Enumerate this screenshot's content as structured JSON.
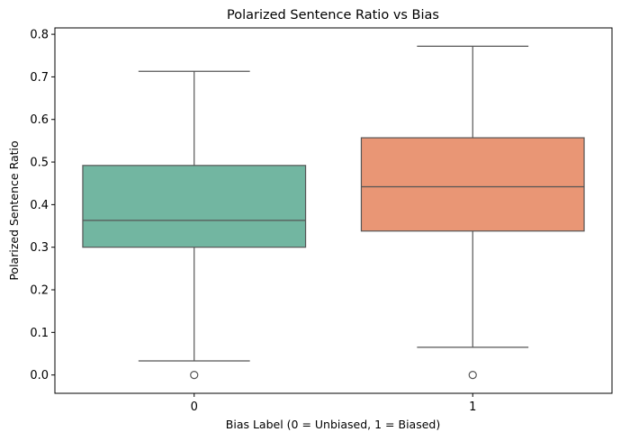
{
  "chart_data": {
    "type": "box",
    "title": "Polarized Sentence Ratio vs Bias",
    "xlabel": "Bias Label (0 = Unbiased, 1 = Biased)",
    "ylabel": "Polarized Sentence Ratio",
    "categories": [
      "0",
      "1"
    ],
    "ylim": [
      -0.043,
      0.815
    ],
    "yticks": [
      0.0,
      0.1,
      0.2,
      0.3,
      0.4,
      0.5,
      0.6,
      0.7,
      0.8
    ],
    "ytick_labels": [
      "0.0",
      "0.1",
      "0.2",
      "0.3",
      "0.4",
      "0.5",
      "0.6",
      "0.7",
      "0.8"
    ],
    "grid": false,
    "boxes": [
      {
        "category": "0",
        "whisker_low": 0.033,
        "q1": 0.3,
        "median": 0.363,
        "q3": 0.492,
        "whisker_high": 0.713,
        "outliers": [
          0.0
        ],
        "color": "#72b6a1"
      },
      {
        "category": "1",
        "whisker_low": 0.065,
        "q1": 0.338,
        "median": 0.442,
        "q3": 0.557,
        "whisker_high": 0.772,
        "outliers": [
          0.0
        ],
        "color": "#e99675"
      }
    ]
  },
  "colors": {
    "line": "#555555",
    "axis": "#000000"
  }
}
